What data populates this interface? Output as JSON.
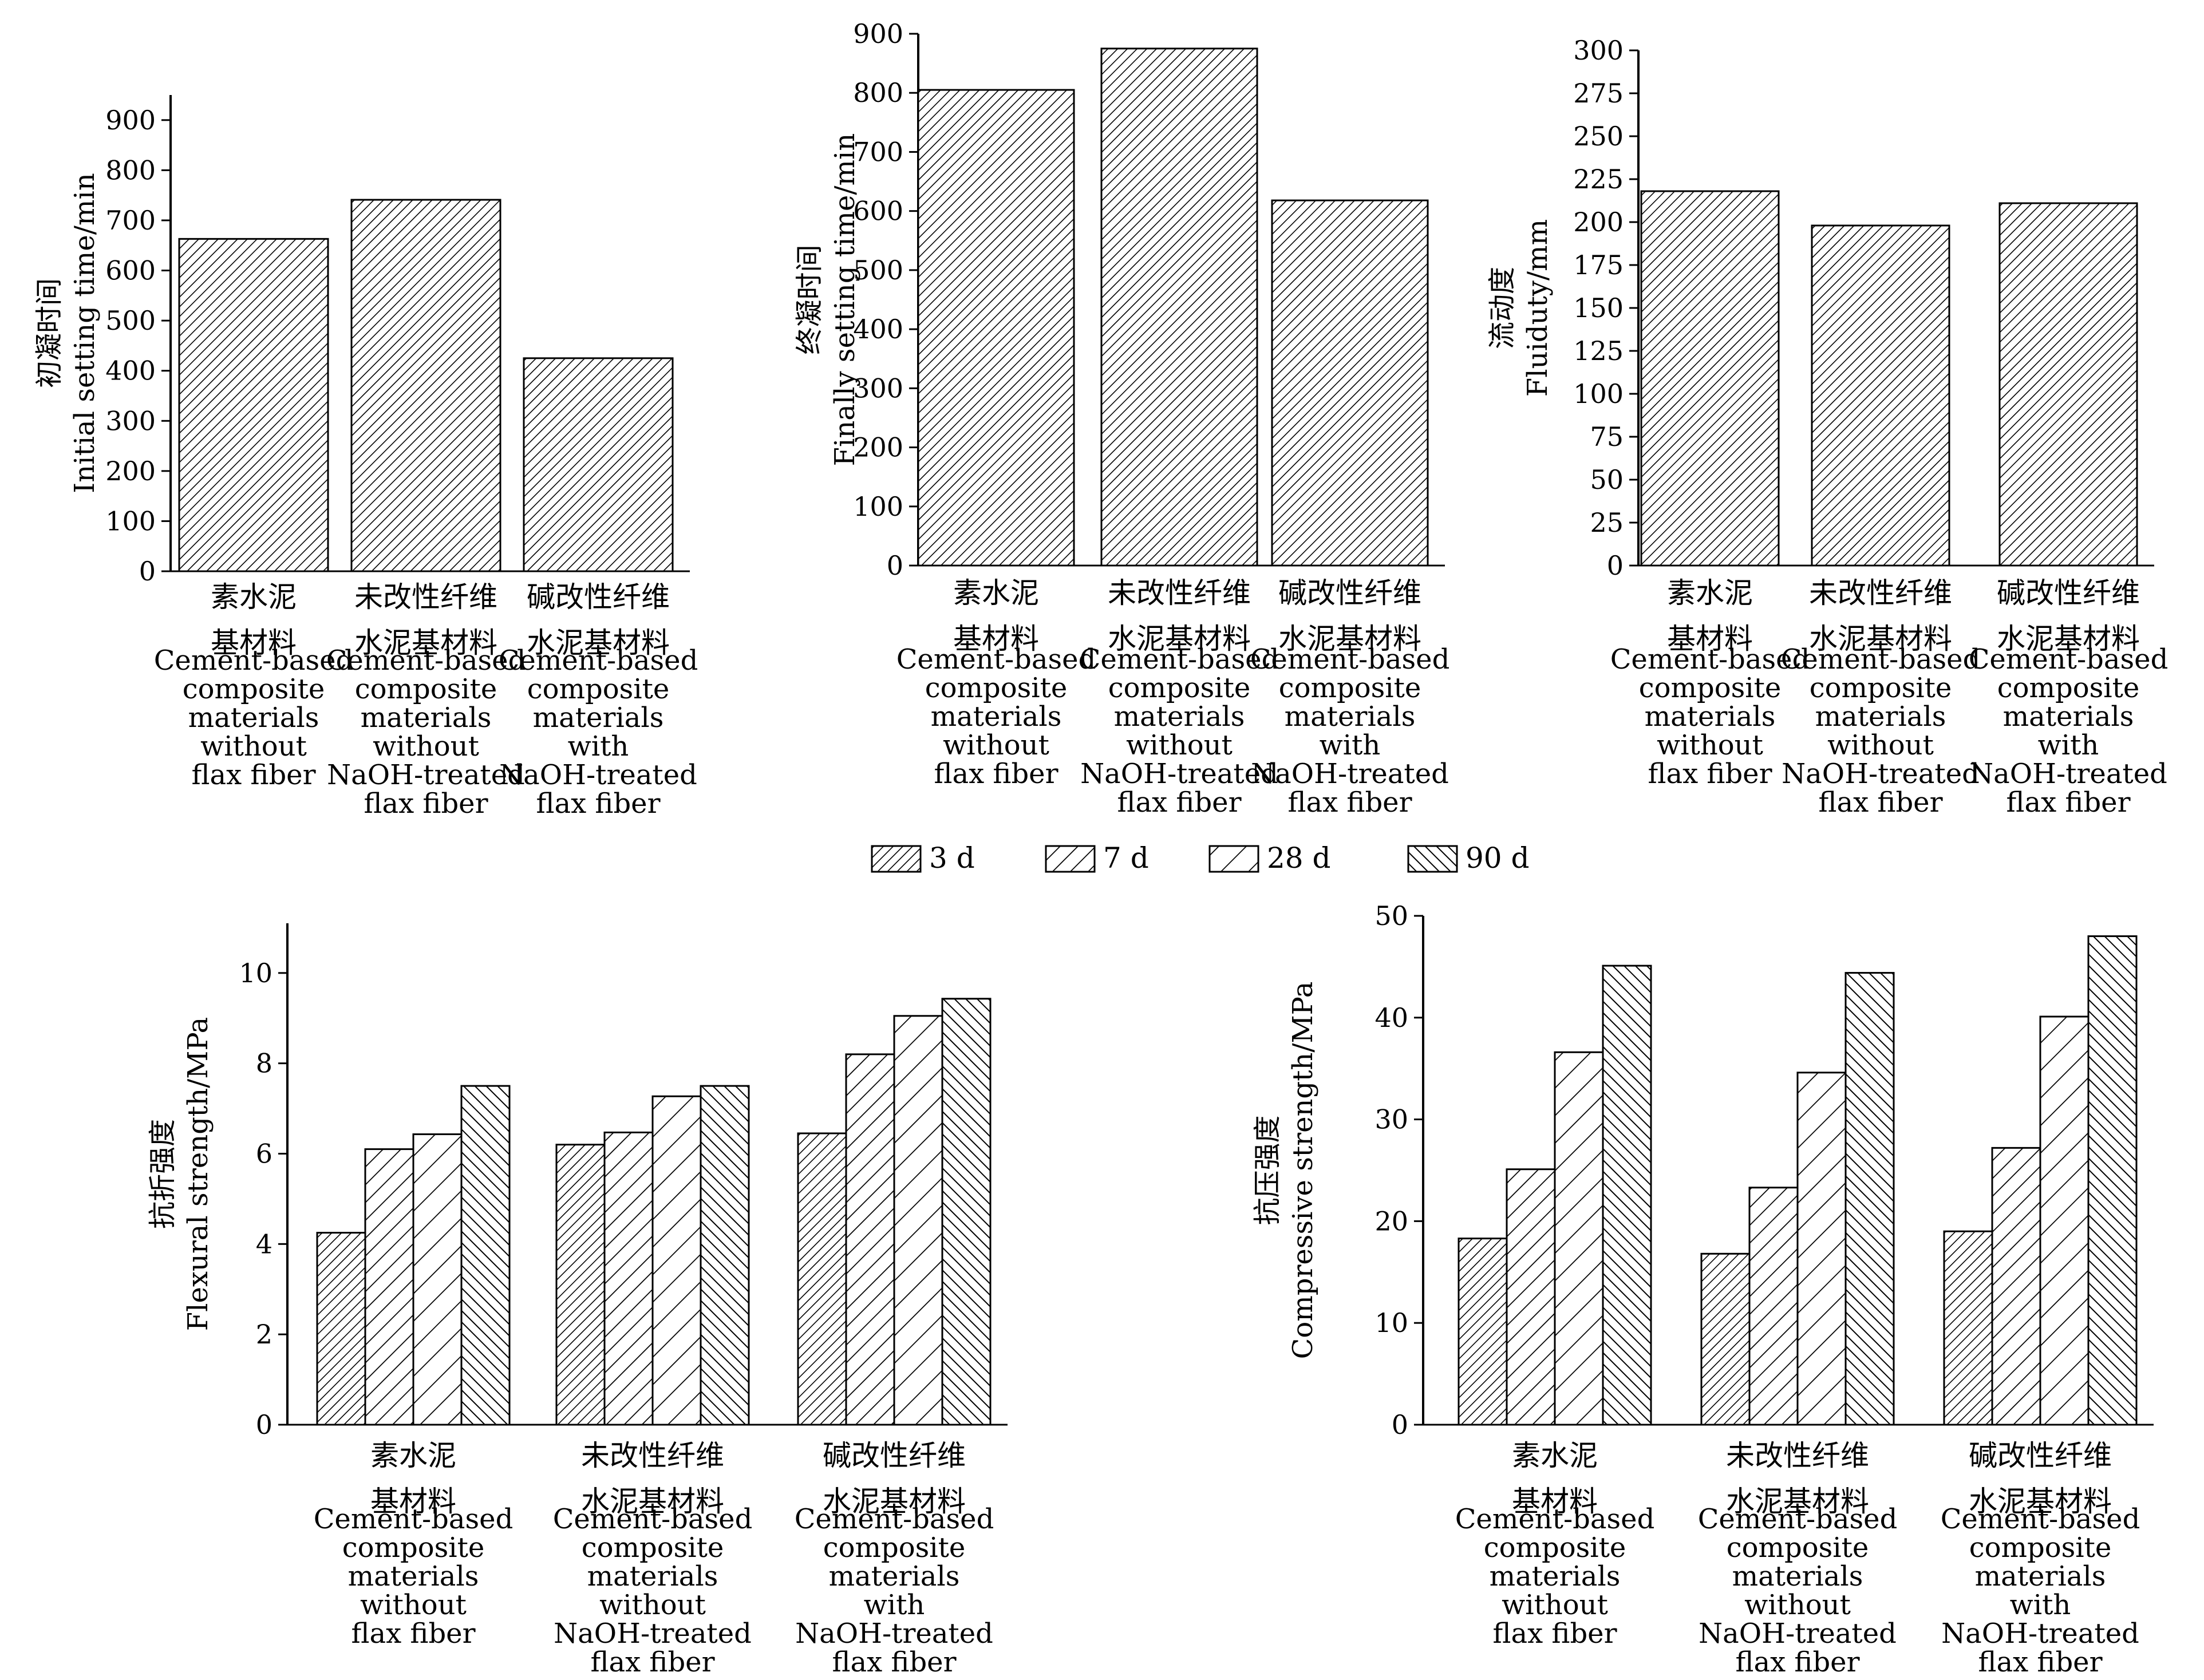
{
  "chart_data": [
    {
      "type": "bar",
      "ylabel_cn": "初凝时间",
      "ylabel_en": "Initial setting time/min",
      "yticks": [
        0,
        100,
        200,
        300,
        400,
        500,
        600,
        700,
        800,
        900
      ],
      "ylim": [
        0,
        950
      ],
      "categories": [
        {
          "cn": [
            "素水泥",
            "基材料"
          ],
          "en": [
            "Cement-based",
            "composite",
            "materials",
            "without",
            "flax fiber"
          ]
        },
        {
          "cn": [
            "未改性纤维",
            "水泥基材料"
          ],
          "en": [
            "Cement-based",
            "composite",
            "materials",
            "without",
            "NaOH-treated",
            "flax fiber"
          ]
        },
        {
          "cn": [
            "碱改性纤维",
            "水泥基材料"
          ],
          "en": [
            "Cement-based",
            "composite",
            "materials",
            "with",
            "NaOH-treated",
            "flax fiber"
          ]
        }
      ],
      "values": [
        663,
        741,
        425
      ]
    },
    {
      "type": "bar",
      "ylabel_cn": "终凝时间",
      "ylabel_en": "Finally setting time/min",
      "yticks": [
        0,
        100,
        200,
        300,
        400,
        500,
        600,
        700,
        800,
        900
      ],
      "ylim": [
        0,
        900
      ],
      "categories": [
        {
          "cn": [
            "素水泥",
            "基材料"
          ],
          "en": [
            "Cement-based",
            "composite",
            "materials",
            "without",
            "flax fiber"
          ]
        },
        {
          "cn": [
            "未改性纤维",
            "水泥基材料"
          ],
          "en": [
            "Cement-based",
            "composite",
            "materials",
            "without",
            "NaOH-treated",
            "flax fiber"
          ]
        },
        {
          "cn": [
            "碱改性纤维",
            "水泥基材料"
          ],
          "en": [
            "Cement-based",
            "composite",
            "materials",
            "with",
            "NaOH-treated",
            "flax fiber"
          ]
        }
      ],
      "values": [
        805,
        875,
        618
      ]
    },
    {
      "type": "bar",
      "ylabel_cn": "流动度",
      "ylabel_en": "Fluiduty/mm",
      "yticks": [
        0,
        25,
        50,
        75,
        100,
        125,
        150,
        175,
        200,
        225,
        250,
        275,
        300
      ],
      "ylim": [
        0,
        300
      ],
      "categories": [
        {
          "cn": [
            "素水泥",
            "基材料"
          ],
          "en": [
            "Cement-based",
            "composite",
            "materials",
            "without",
            "flax fiber"
          ]
        },
        {
          "cn": [
            "未改性纤维",
            "水泥基材料"
          ],
          "en": [
            "Cement-based",
            "composite",
            "materials",
            "without",
            "NaOH-treated",
            "flax fiber"
          ]
        },
        {
          "cn": [
            "碱改性纤维",
            "水泥基材料"
          ],
          "en": [
            "Cement-based",
            "composite",
            "materials",
            "with",
            "NaOH-treated",
            "flax fiber"
          ]
        }
      ],
      "values": [
        218,
        198,
        211
      ]
    },
    {
      "type": "bar",
      "ylabel_cn": "抗折强度",
      "ylabel_en": "Flexural strength/MPa",
      "yticks": [
        0,
        2,
        4,
        6,
        8,
        10
      ],
      "ylim": [
        0,
        11.1
      ],
      "categories": [
        {
          "cn": [
            "素水泥",
            "基材料"
          ],
          "en": [
            "Cement-based",
            "composite",
            "materials",
            "without",
            "flax fiber"
          ]
        },
        {
          "cn": [
            "未改性纤维",
            "水泥基材料"
          ],
          "en": [
            "Cement-based",
            "composite",
            "materials",
            "without",
            "NaOH-treated",
            "flax fiber"
          ]
        },
        {
          "cn": [
            "碱改性纤维",
            "水泥基材料"
          ],
          "en": [
            "Cement-based",
            "composite",
            "materials",
            "with",
            "NaOH-treated",
            "flax fiber"
          ]
        }
      ],
      "series": [
        {
          "name": "3 d",
          "values": [
            4.25,
            6.2,
            6.45
          ]
        },
        {
          "name": "7 d",
          "values": [
            6.1,
            6.47,
            8.2
          ]
        },
        {
          "name": "28 d",
          "values": [
            6.43,
            7.27,
            9.05
          ]
        },
        {
          "name": "90 d",
          "values": [
            7.5,
            7.5,
            9.43
          ]
        }
      ]
    },
    {
      "type": "bar",
      "ylabel_cn": "抗压强度",
      "ylabel_en": "Compressive strength/MPa",
      "yticks": [
        0,
        10,
        20,
        30,
        40,
        50
      ],
      "ylim": [
        0,
        50
      ],
      "categories": [
        {
          "cn": [
            "素水泥",
            "基材料"
          ],
          "en": [
            "Cement-based",
            "composite",
            "materials",
            "without",
            "flax fiber"
          ]
        },
        {
          "cn": [
            "未改性纤维",
            "水泥基材料"
          ],
          "en": [
            "Cement-based",
            "composite",
            "materials",
            "without",
            "NaOH-treated",
            "flax fiber"
          ]
        },
        {
          "cn": [
            "碱改性纤维",
            "水泥基材料"
          ],
          "en": [
            "Cement-based",
            "composite",
            "materials",
            "with",
            "NaOH-treated",
            "flax fiber"
          ]
        }
      ],
      "series": [
        {
          "name": "3 d",
          "values": [
            18.3,
            16.8,
            19.0
          ]
        },
        {
          "name": "7 d",
          "values": [
            25.1,
            23.3,
            27.2
          ]
        },
        {
          "name": "28 d",
          "values": [
            36.6,
            34.6,
            40.1
          ]
        },
        {
          "name": "90 d",
          "values": [
            45.1,
            44.4,
            48.0
          ]
        }
      ]
    }
  ],
  "legend": {
    "entries": [
      "3 d",
      "7 d",
      "28 d",
      "90 d"
    ]
  }
}
